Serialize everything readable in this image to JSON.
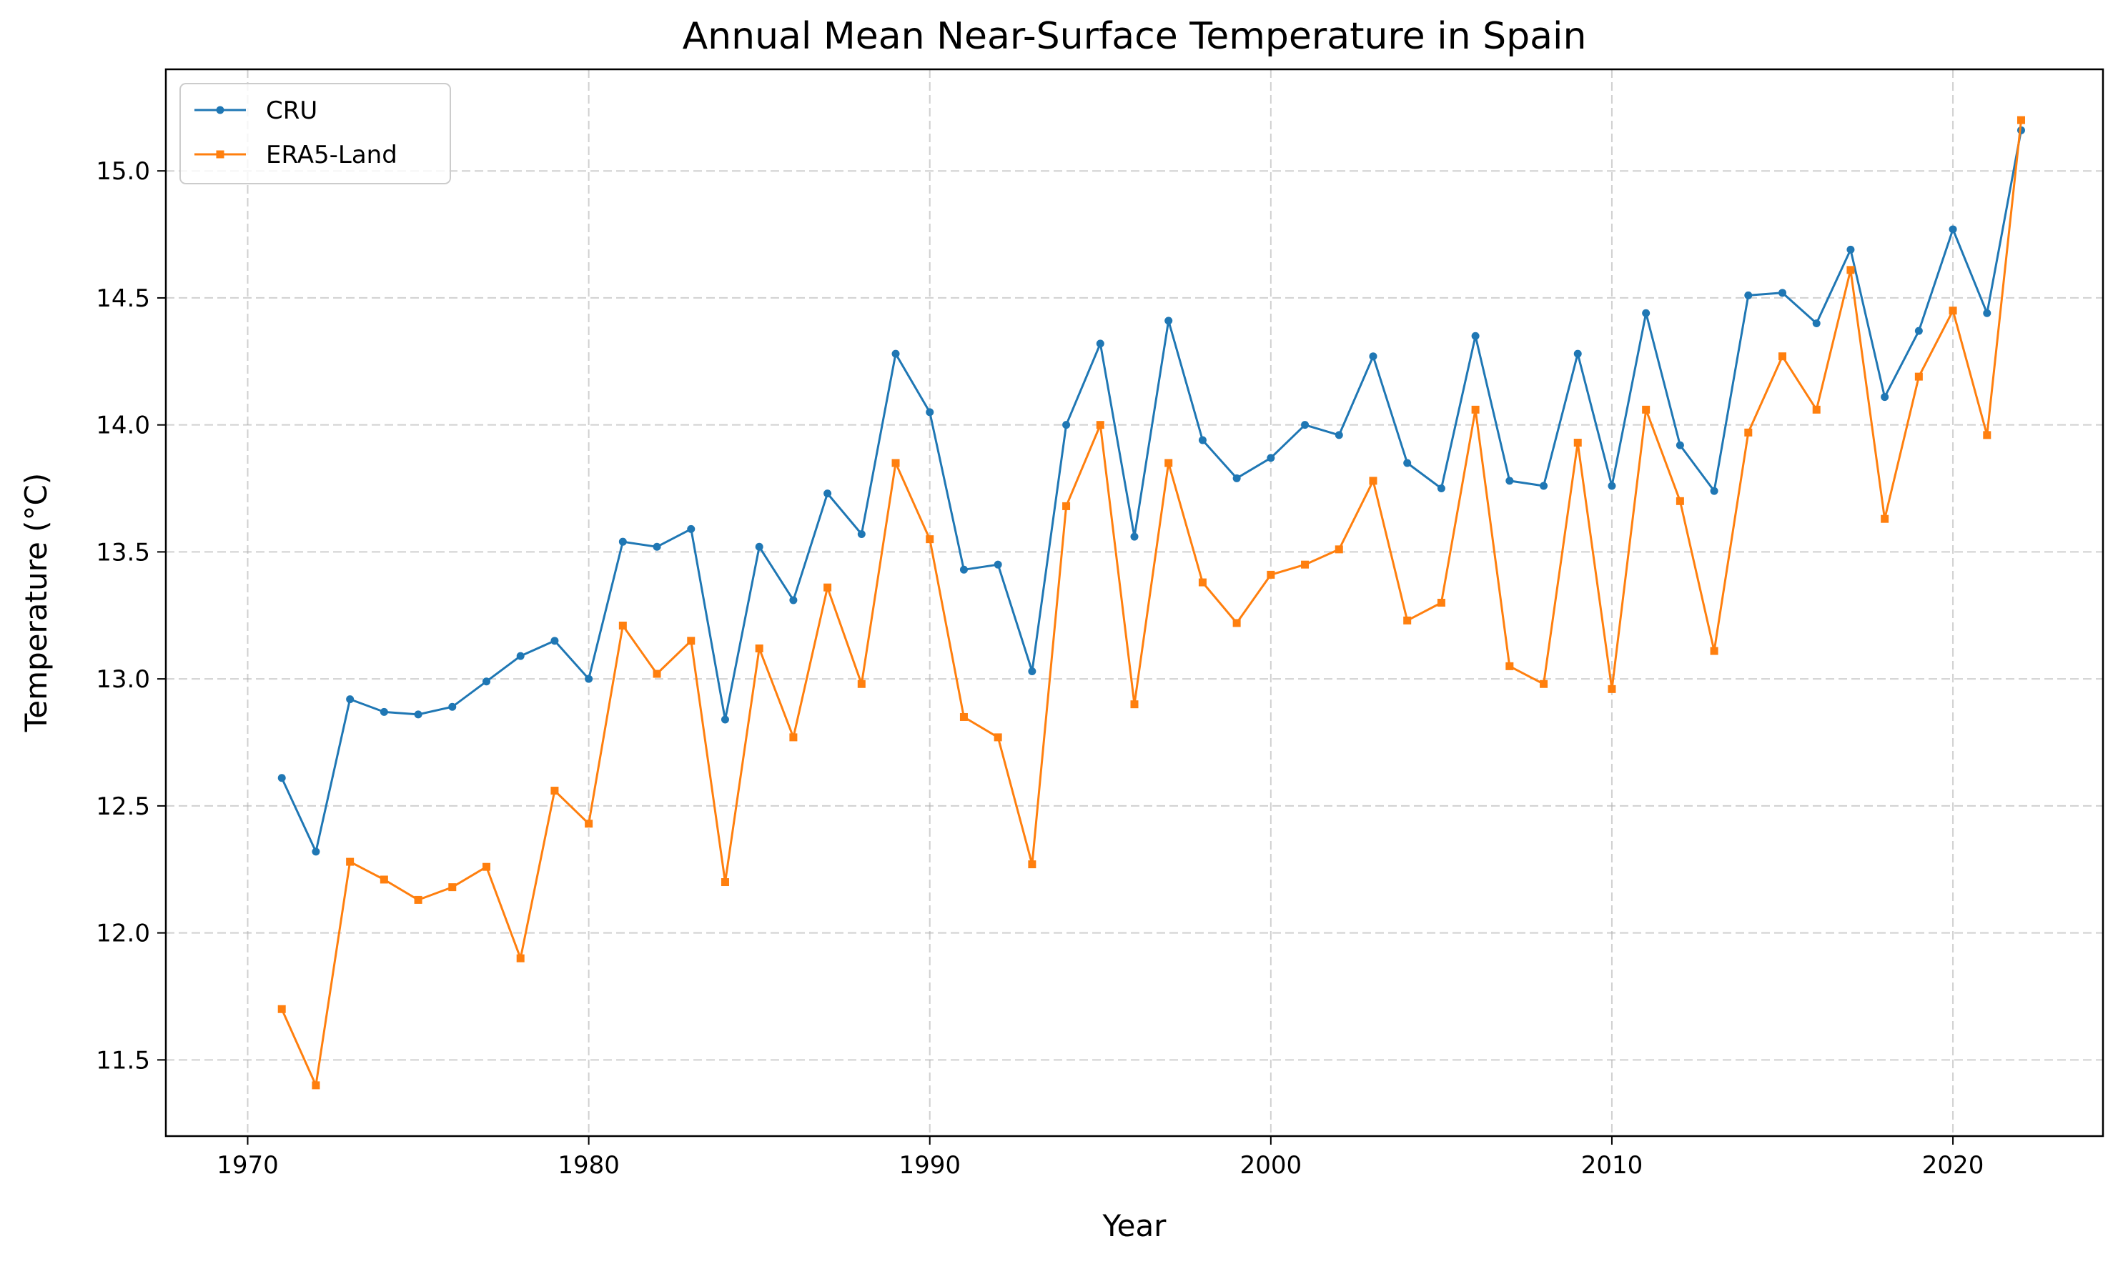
{
  "chart_data": {
    "type": "line",
    "title": "Annual Mean Near-Surface Temperature in Spain",
    "xlabel": "Year",
    "ylabel": "Temperature (°C)",
    "xlim": [
      1967.6,
      2024.4
    ],
    "ylim": [
      11.2,
      15.4
    ],
    "xticks": [
      1970,
      1980,
      1990,
      2000,
      2010,
      2020
    ],
    "yticks": [
      11.5,
      12.0,
      12.5,
      13.0,
      13.5,
      14.0,
      14.5,
      15.0
    ],
    "grid": true,
    "legend_position": "upper-left",
    "x": [
      1971,
      1972,
      1973,
      1974,
      1975,
      1976,
      1977,
      1978,
      1979,
      1980,
      1981,
      1982,
      1983,
      1984,
      1985,
      1986,
      1987,
      1988,
      1989,
      1990,
      1991,
      1992,
      1993,
      1994,
      1995,
      1996,
      1997,
      1998,
      1999,
      2000,
      2001,
      2002,
      2003,
      2004,
      2005,
      2006,
      2007,
      2008,
      2009,
      2010,
      2011,
      2012,
      2013,
      2014,
      2015,
      2016,
      2017,
      2018,
      2019,
      2020,
      2021,
      2022
    ],
    "series": [
      {
        "name": "CRU",
        "color": "#1f77b4",
        "marker": "circle",
        "values": [
          12.61,
          12.32,
          12.92,
          12.87,
          12.86,
          12.89,
          12.99,
          13.09,
          13.15,
          13.0,
          13.54,
          13.52,
          13.59,
          12.84,
          13.52,
          13.31,
          13.73,
          13.57,
          14.28,
          14.05,
          13.43,
          13.45,
          13.03,
          14.0,
          14.32,
          13.56,
          14.41,
          13.94,
          13.79,
          13.87,
          14.0,
          13.96,
          14.27,
          13.85,
          13.75,
          14.35,
          13.78,
          13.76,
          14.28,
          13.76,
          14.44,
          13.92,
          13.74,
          14.51,
          14.52,
          14.4,
          14.69,
          14.11,
          14.37,
          14.77,
          14.44,
          15.16
        ]
      },
      {
        "name": "ERA5-Land",
        "color": "#ff7f0e",
        "marker": "square",
        "values": [
          11.7,
          11.4,
          12.28,
          12.21,
          12.13,
          12.18,
          12.26,
          11.9,
          12.56,
          12.43,
          13.21,
          13.02,
          13.15,
          12.2,
          13.12,
          12.77,
          13.36,
          12.98,
          13.85,
          13.55,
          12.85,
          12.77,
          12.27,
          13.68,
          14.0,
          12.9,
          13.85,
          13.38,
          13.22,
          13.41,
          13.45,
          13.51,
          13.78,
          13.23,
          13.3,
          14.06,
          13.05,
          12.98,
          13.93,
          12.96,
          14.06,
          13.7,
          13.11,
          13.97,
          14.27,
          14.06,
          14.61,
          13.63,
          14.19,
          14.45,
          13.96,
          15.2
        ]
      }
    ]
  }
}
